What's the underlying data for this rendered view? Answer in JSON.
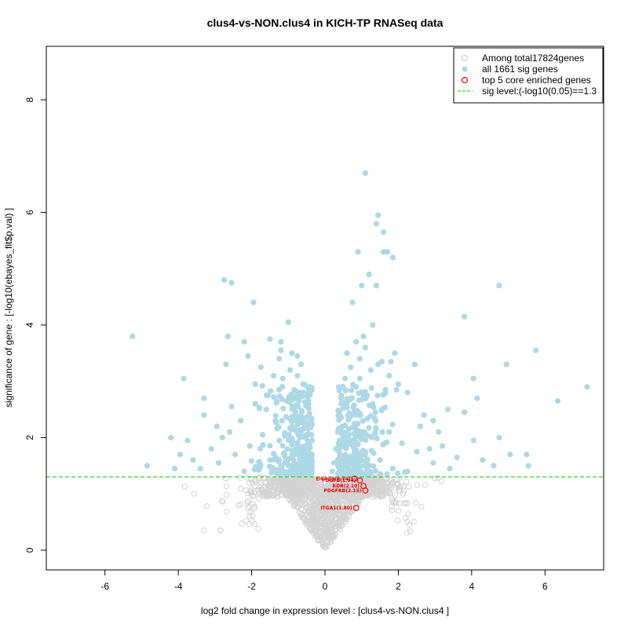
{
  "chart_data": {
    "type": "scatter",
    "title": "clus4-vs-NON.clus4 in KICH-TP RNASeq data",
    "xlabel": "log2 fold change in expression level : [clus4-vs-NON.clus4 ]",
    "ylabel": "significance of gene : [-log10(ebayes_fit$p.val) ]",
    "xlim": [
      -7.6,
      7.6
    ],
    "ylim": [
      -0.35,
      8.95
    ],
    "xticks": [
      -6,
      -4,
      -2,
      0,
      2,
      4,
      6
    ],
    "yticks": [
      0,
      2,
      4,
      6,
      8
    ],
    "sig_threshold": 1.3,
    "colors": {
      "background": "#d3d3d3",
      "sig": "#add8e6",
      "core": "#ff0000",
      "threshold": "#00cc00",
      "axis": "#000000"
    },
    "legend": {
      "position": "top-right",
      "entries": [
        {
          "label": "Among total17824genes",
          "kind": "open-circle",
          "color": "#c8c8c8"
        },
        {
          "label": "all 1661 sig genes",
          "kind": "filled-circle",
          "color": "#add8e6"
        },
        {
          "label": "top 5 core enriched genes",
          "kind": "open-circle",
          "color": "#ff0000"
        },
        {
          "label": "sig level:(-log10(0.05)==1.3",
          "kind": "dashed-line",
          "color": "#00cc00"
        }
      ]
    },
    "sig_points": [
      [
        1.1,
        6.7
      ],
      [
        1.45,
        5.95
      ],
      [
        1.4,
        5.8
      ],
      [
        1.6,
        5.65
      ],
      [
        0.9,
        5.3
      ],
      [
        1.6,
        5.3
      ],
      [
        1.7,
        5.3
      ],
      [
        1.85,
        5.2
      ],
      [
        -2.75,
        4.8
      ],
      [
        -2.55,
        4.75
      ],
      [
        1.2,
        4.9
      ],
      [
        1.4,
        4.7
      ],
      [
        1.0,
        4.7
      ],
      [
        4.75,
        4.7
      ],
      [
        -1.95,
        4.4
      ],
      [
        0.75,
        4.4
      ],
      [
        3.8,
        4.15
      ],
      [
        -1.0,
        4.05
      ],
      [
        -5.25,
        3.8
      ],
      [
        5.75,
        3.55
      ],
      [
        -2.65,
        3.8
      ],
      [
        -1.5,
        3.75
      ],
      [
        -2.2,
        3.7
      ],
      [
        -1.2,
        3.7
      ],
      [
        1.1,
        3.6
      ],
      [
        1.9,
        3.5
      ],
      [
        1.55,
        3.35
      ],
      [
        -0.75,
        3.45
      ],
      [
        -2.1,
        3.45
      ],
      [
        -3.85,
        3.05
      ],
      [
        4.95,
        3.3
      ],
      [
        -2.7,
        3.3
      ],
      [
        2.45,
        3.3
      ],
      [
        4.05,
        3.05
      ],
      [
        7.15,
        2.9
      ],
      [
        -3.3,
        2.7
      ],
      [
        4.15,
        2.7
      ],
      [
        2.0,
        2.95
      ],
      [
        -2.55,
        2.55
      ],
      [
        6.35,
        2.65
      ],
      [
        3.35,
        2.5
      ],
      [
        -3.3,
        2.4
      ],
      [
        3.8,
        2.45
      ],
      [
        -4.2,
        2.0
      ],
      [
        4.05,
        1.95
      ],
      [
        -3.75,
        1.95
      ],
      [
        4.75,
        2.0
      ],
      [
        -3.95,
        1.7
      ],
      [
        5.05,
        1.7
      ],
      [
        5.5,
        1.7
      ],
      [
        -4.85,
        1.5
      ],
      [
        5.55,
        1.5
      ],
      [
        -1.9,
        2.6
      ],
      [
        -1.6,
        2.5
      ],
      [
        -2.3,
        2.3
      ],
      [
        2.25,
        2.8
      ],
      [
        2.7,
        2.4
      ],
      [
        3.1,
        2.1
      ],
      [
        2.85,
        1.8
      ],
      [
        -2.8,
        2.0
      ],
      [
        -1.4,
        3.1
      ],
      [
        -1.15,
        3.05
      ],
      [
        -0.95,
        3.2
      ],
      [
        1.25,
        3.2
      ],
      [
        0.95,
        3.05
      ],
      [
        1.65,
        2.85
      ],
      [
        -0.6,
        2.95
      ],
      [
        0.55,
        3.05
      ],
      [
        -0.85,
        2.7
      ],
      [
        0.6,
        2.6
      ],
      [
        -0.55,
        2.35
      ],
      [
        0.4,
        2.4
      ],
      [
        -0.5,
        2.05
      ],
      [
        0.35,
        2.1
      ],
      [
        -0.45,
        1.8
      ],
      [
        0.3,
        1.8
      ],
      [
        -0.4,
        1.55
      ],
      [
        0.25,
        1.55
      ],
      [
        -0.35,
        1.4
      ],
      [
        0.2,
        1.4
      ],
      [
        -0.7,
        2.8
      ],
      [
        0.85,
        2.9
      ],
      [
        -1.05,
        2.65
      ],
      [
        1.15,
        2.75
      ],
      [
        -1.35,
        2.3
      ],
      [
        1.35,
        2.35
      ],
      [
        -1.7,
        2.05
      ],
      [
        1.75,
        2.1
      ],
      [
        -2.05,
        1.85
      ],
      [
        2.1,
        1.9
      ],
      [
        -2.45,
        1.7
      ],
      [
        2.5,
        1.75
      ],
      [
        -2.9,
        1.55
      ],
      [
        2.95,
        1.55
      ],
      [
        -3.4,
        1.45
      ],
      [
        3.4,
        1.45
      ],
      [
        -0.8,
        2.45
      ],
      [
        0.8,
        2.5
      ],
      [
        -0.9,
        2.2
      ],
      [
        0.9,
        2.25
      ],
      [
        -1.0,
        1.95
      ],
      [
        1.0,
        2.0
      ],
      [
        -1.1,
        1.7
      ],
      [
        1.1,
        1.75
      ],
      [
        -1.2,
        1.5
      ],
      [
        1.2,
        1.5
      ],
      [
        -0.65,
        2.1
      ],
      [
        0.65,
        2.15
      ],
      [
        -0.75,
        1.85
      ],
      [
        0.7,
        1.9
      ],
      [
        -0.85,
        1.6
      ],
      [
        0.75,
        1.65
      ],
      [
        -0.95,
        1.4
      ],
      [
        0.85,
        1.4
      ],
      [
        -1.5,
        1.6
      ],
      [
        1.5,
        1.6
      ],
      [
        -1.8,
        1.45
      ],
      [
        1.85,
        1.45
      ],
      [
        -2.2,
        1.4
      ],
      [
        2.25,
        1.4
      ],
      [
        -0.6,
        1.65
      ],
      [
        0.55,
        1.7
      ],
      [
        -0.55,
        1.45
      ],
      [
        0.5,
        1.45
      ],
      [
        -1.25,
        2.85
      ],
      [
        1.3,
        2.6
      ],
      [
        -1.55,
        2.75
      ],
      [
        1.55,
        2.5
      ],
      [
        -0.75,
        3.1
      ],
      [
        0.7,
        3.25
      ],
      [
        -0.45,
        2.6
      ],
      [
        0.45,
        2.75
      ],
      [
        -0.35,
        1.95
      ],
      [
        0.4,
        1.95
      ],
      [
        -2.6,
        2.1
      ],
      [
        2.6,
        2.2
      ],
      [
        -3.1,
        1.8
      ],
      [
        3.2,
        1.85
      ],
      [
        3.6,
        1.65
      ],
      [
        -3.6,
        1.6
      ],
      [
        4.3,
        1.6
      ],
      [
        -4.1,
        1.45
      ],
      [
        4.6,
        1.5
      ],
      [
        2.95,
        2.3
      ],
      [
        -2.95,
        2.2
      ],
      [
        -1.9,
        2.95
      ],
      [
        1.95,
        2.85
      ],
      [
        -1.25,
        3.4
      ],
      [
        1.45,
        3.3
      ],
      [
        1.75,
        3.1
      ],
      [
        -1.75,
        3.25
      ],
      [
        0.95,
        3.4
      ],
      [
        -0.9,
        3.5
      ],
      [
        1.05,
        3.8
      ],
      [
        -1.2,
        3.55
      ],
      [
        1.3,
        4.0
      ],
      [
        0.85,
        3.7
      ],
      [
        1.8,
        3.35
      ],
      [
        -0.65,
        3.3
      ],
      [
        0.6,
        3.5
      ]
    ],
    "core_genes": [
      {
        "label": "EIF4G3(0.74)",
        "x": 0.8,
        "y": 1.27
      },
      {
        "label": "PDGFB(1.94)",
        "x": 0.95,
        "y": 1.24
      },
      {
        "label": "KDR(2.10)",
        "x": 1.05,
        "y": 1.14
      },
      {
        "label": "PDGFRB(2.15)",
        "x": 1.1,
        "y": 1.06
      },
      {
        "label": "ITGA1(1.80)",
        "x": 0.85,
        "y": 0.75
      }
    ]
  }
}
